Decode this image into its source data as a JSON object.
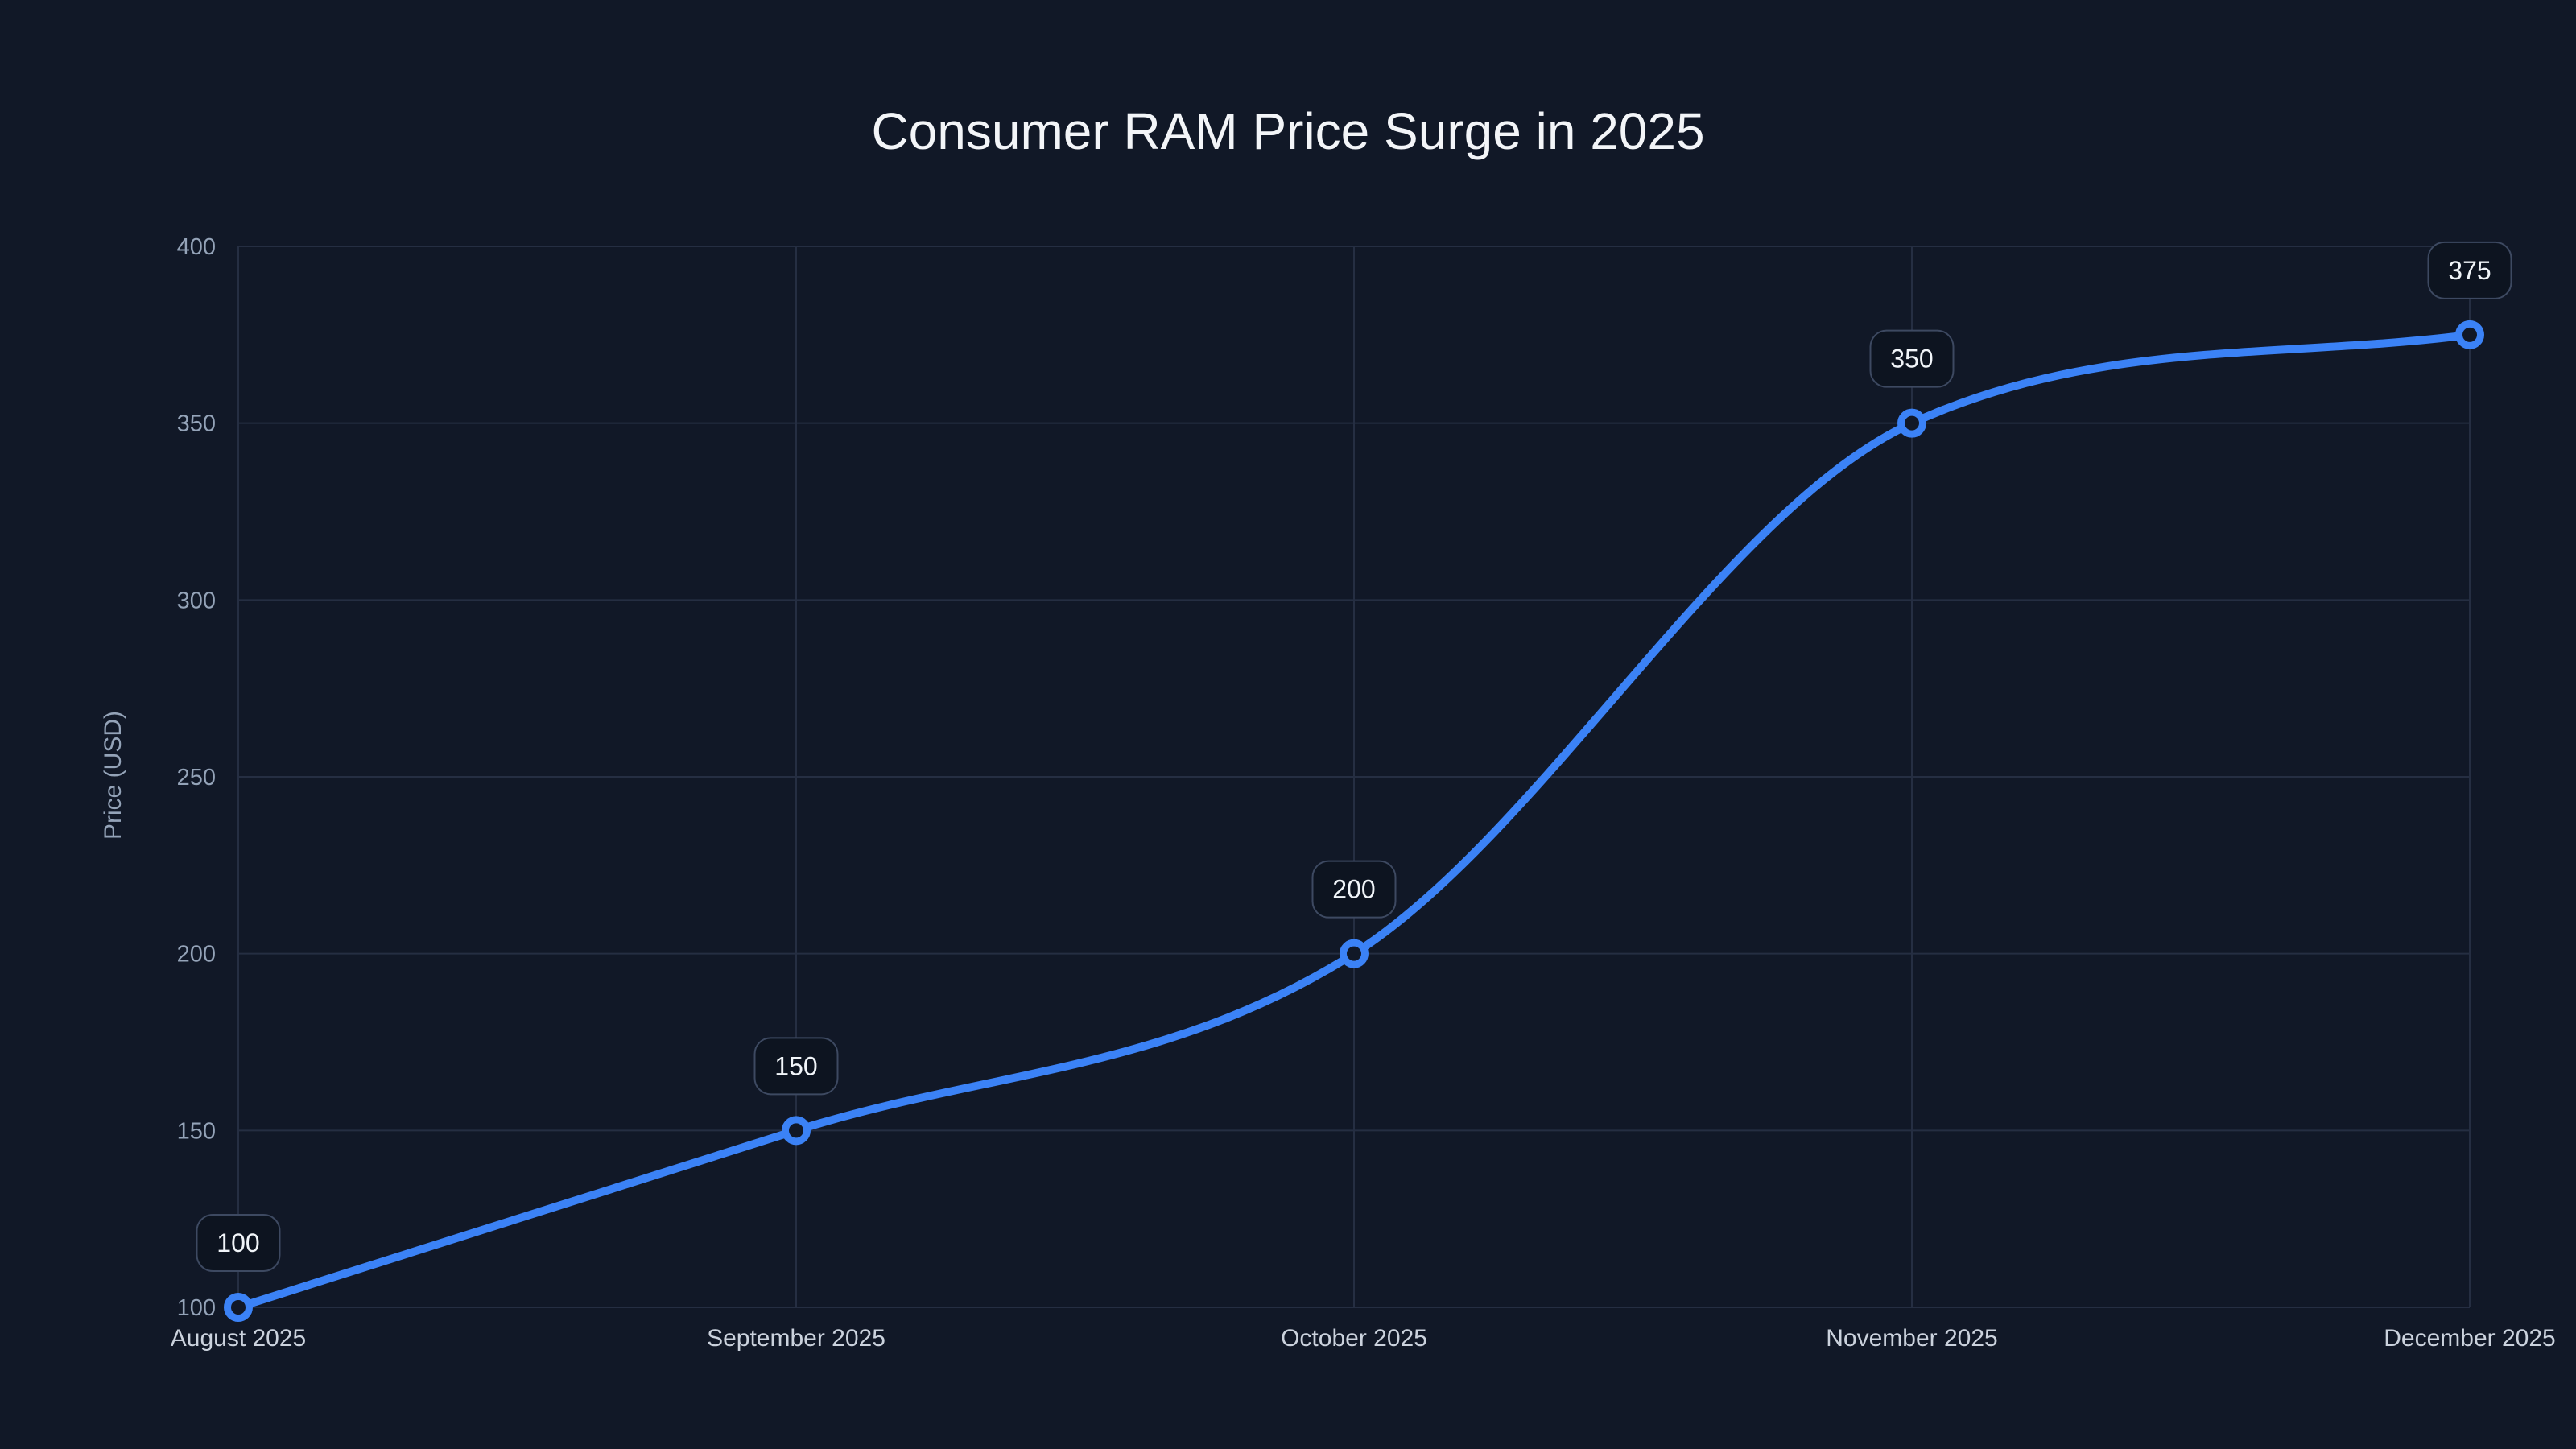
{
  "page": {
    "background": "#111827"
  },
  "chart_data": {
    "type": "line",
    "title": "Consumer RAM Price Surge in 2025",
    "xlabel": "",
    "ylabel": "Price (USD)",
    "categories": [
      "August 2025",
      "September 2025",
      "October 2025",
      "November 2025",
      "December 2025"
    ],
    "series": [
      {
        "name": "Price (USD)",
        "values": [
          100,
          150,
          200,
          350,
          375
        ]
      }
    ],
    "point_labels": [
      "100",
      "150",
      "200",
      "350",
      "375"
    ],
    "ylim": [
      100,
      400
    ],
    "yticks": [
      100,
      150,
      200,
      250,
      300,
      350,
      400
    ],
    "grid": true,
    "legend": "none",
    "line_shape": "smooth",
    "colors": {
      "background": "#111827",
      "line": "#3b82f6",
      "marker_fill": "#111827",
      "grid": "#252e42",
      "y_tick_text": "#94a3b8",
      "x_tick_text": "#cbd2dd",
      "title_text": "#f3f5f8",
      "label_box_fill": "#0d1420",
      "label_box_border": "#3d4961",
      "label_text": "#f1f5f9"
    }
  }
}
